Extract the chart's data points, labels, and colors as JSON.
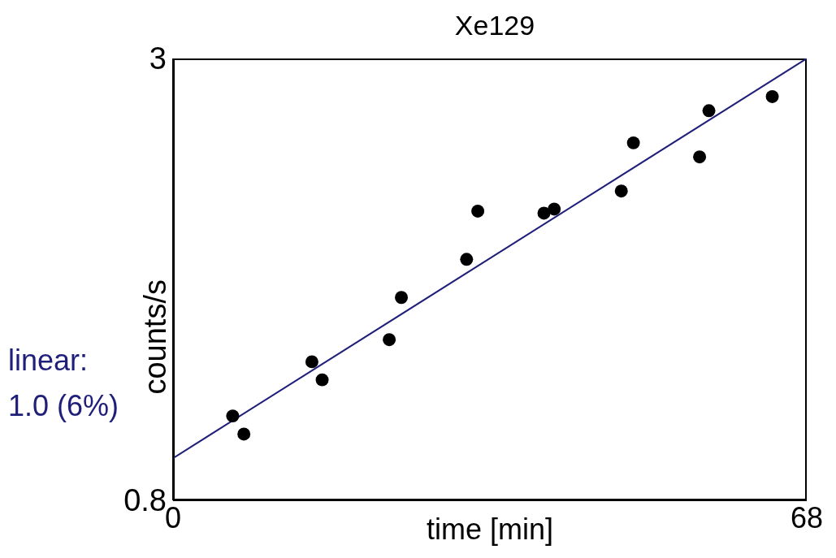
{
  "chart_data": {
    "type": "scatter",
    "title": "Xe129",
    "xlabel": "time [min]",
    "ylabel": "counts/s",
    "xlim": [
      0,
      68
    ],
    "xticks": [
      0,
      68
    ],
    "ylim": [
      0.8,
      3
    ],
    "yticks": [
      0.8,
      3
    ],
    "marker": "circle",
    "series": [
      {
        "color": "#000000",
        "x": [
          6.4,
          7.6,
          14.9,
          16.0,
          23.2,
          24.5,
          31.5,
          32.7,
          39.8,
          40.9,
          48.1,
          49.4,
          56.5,
          57.5,
          64.3
        ],
        "values": [
          1.22,
          1.13,
          1.49,
          1.4,
          1.6,
          1.81,
          2.0,
          2.24,
          2.23,
          2.25,
          2.34,
          2.58,
          2.51,
          2.74,
          2.81
        ]
      },
      {
        "type": "line",
        "color": "#1f1f7a",
        "marker": "none",
        "x": [
          0,
          68
        ],
        "values": [
          1.01,
          3.0
        ]
      }
    ],
    "annotations": [
      "linear:",
      "1.0 (6%)"
    ]
  }
}
